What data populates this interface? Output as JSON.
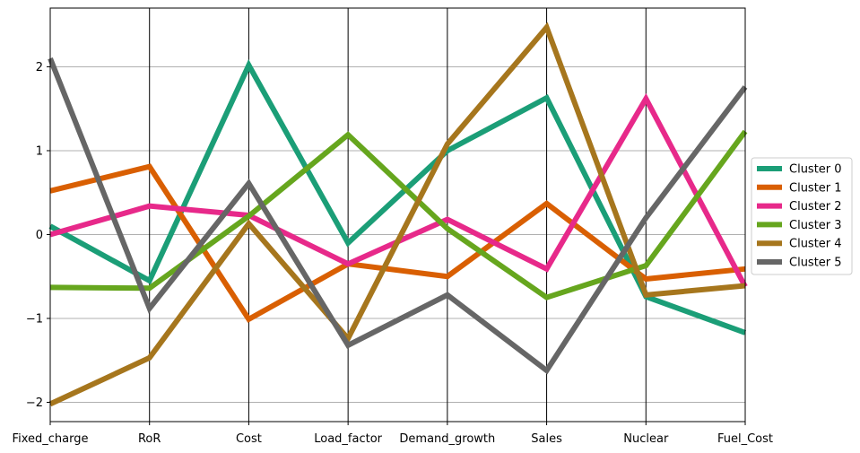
{
  "chart_data": {
    "type": "line",
    "subtype": "parallel-coordinates",
    "title": "",
    "xlabel": "",
    "ylabel": "",
    "categories": [
      "Fixed_charge",
      "RoR",
      "Cost",
      "Load_factor",
      "Demand_growth",
      "Sales",
      "Nuclear",
      "Fuel_Cost"
    ],
    "ylim": [
      -2.23,
      2.7
    ],
    "yticks": [
      -2,
      -1,
      0,
      1,
      2
    ],
    "ytick_labels": [
      "−2",
      "−1",
      "0",
      "1",
      "2"
    ],
    "grid": true,
    "legend_position": "center-right, outside plot",
    "series": [
      {
        "name": "Cluster 0",
        "color": "#1b9e77",
        "values": [
          0.1,
          -0.55,
          2.02,
          -0.1,
          1.0,
          1.63,
          -0.74,
          -1.17
        ]
      },
      {
        "name": "Cluster 1",
        "color": "#d95f02",
        "values": [
          0.52,
          0.81,
          -1.01,
          -0.35,
          -0.5,
          0.37,
          -0.53,
          -0.41
        ]
      },
      {
        "name": "Cluster 2",
        "color": "#e7298a",
        "values": [
          0.0,
          0.34,
          0.23,
          -0.35,
          0.18,
          -0.41,
          1.62,
          -0.62
        ]
      },
      {
        "name": "Cluster 3",
        "color": "#66a61e",
        "values": [
          -0.63,
          -0.64,
          0.22,
          1.19,
          0.07,
          -0.75,
          -0.37,
          1.23
        ]
      },
      {
        "name": "Cluster 4",
        "color": "#a6761d",
        "values": [
          -2.02,
          -1.47,
          0.13,
          -1.24,
          1.08,
          2.47,
          -0.72,
          -0.61
        ]
      },
      {
        "name": "Cluster 5",
        "color": "#666666",
        "values": [
          2.1,
          -0.88,
          0.61,
          -1.32,
          -0.72,
          -1.62,
          0.2,
          1.76
        ]
      }
    ]
  }
}
